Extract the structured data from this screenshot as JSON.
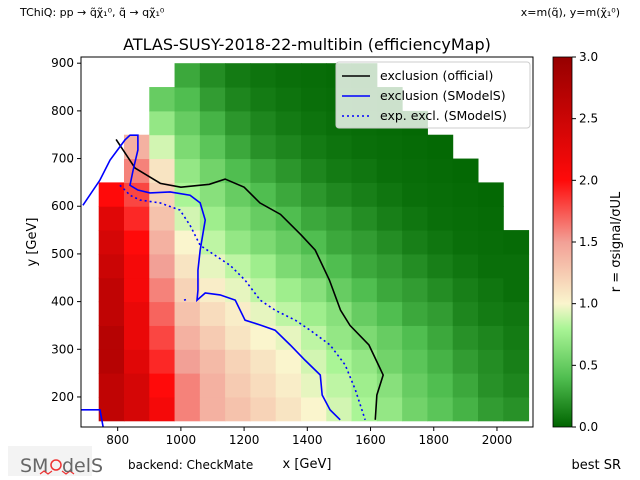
{
  "header": {
    "process_label": "TChiQ: pp → q̃χ̃₁⁰, q̃ → qχ̃₁⁰",
    "axes_def": "x=m(q̃), y=m(χ̃₁⁰)"
  },
  "footer": {
    "logo_text": "SModelS",
    "backend": "backend: CheckMate",
    "best_sr": "best SR"
  },
  "chart_data": {
    "type": "heatmap",
    "title": "ATLAS-SUSY-2018-22-multibin (efficiencyMap)",
    "xlabel": "x [GeV]",
    "ylabel": "y [GeV]",
    "xlim": [
      684,
      2114
    ],
    "ylim": [
      137,
      913
    ],
    "xticks": [
      800,
      1000,
      1200,
      1400,
      1600,
      1800,
      2000
    ],
    "yticks": [
      200,
      300,
      400,
      500,
      600,
      700,
      800,
      900
    ],
    "colorbar": {
      "label": "r = σsignal/σUL",
      "range": [
        0,
        3
      ],
      "ticks": [
        "0.0",
        "0.5",
        "1.0",
        "1.5",
        "2.0",
        "2.5",
        "3.0"
      ]
    },
    "grid_x": [
      780,
      860,
      940,
      1020,
      1100,
      1180,
      1260,
      1340,
      1420,
      1500,
      1580,
      1660,
      1740,
      1820,
      1900,
      1980,
      2060
    ],
    "grid_y": [
      175,
      225,
      275,
      325,
      375,
      425,
      475,
      525,
      575,
      625,
      675,
      725,
      775,
      825,
      875
    ],
    "cell_size": [
      80,
      50
    ],
    "r_values": [
      [
        2.6,
        2.4,
        2.1,
        1.6,
        1.4,
        1.3,
        1.2,
        1.1,
        1.0,
        0.9,
        0.8,
        0.7,
        0.55,
        0.45,
        0.35,
        0.25,
        0.2
      ],
      [
        2.6,
        2.4,
        2.0,
        1.6,
        1.4,
        1.25,
        1.15,
        1.05,
        0.95,
        0.85,
        0.75,
        0.65,
        0.5,
        0.4,
        0.3,
        0.2,
        0.15
      ],
      [
        2.7,
        2.3,
        1.9,
        1.5,
        1.35,
        1.2,
        1.1,
        1.0,
        0.9,
        0.8,
        0.7,
        0.55,
        0.45,
        0.35,
        0.25,
        0.18,
        0.12
      ],
      [
        2.7,
        2.2,
        1.8,
        1.4,
        1.25,
        1.1,
        1.0,
        0.95,
        0.85,
        0.7,
        0.6,
        0.5,
        0.4,
        0.3,
        0.2,
        0.15,
        0.1
      ],
      [
        2.6,
        2.2,
        1.7,
        1.3,
        1.15,
        1.05,
        0.95,
        0.85,
        0.75,
        0.65,
        0.5,
        0.4,
        0.3,
        0.25,
        0.15,
        0.1,
        0.08
      ],
      [
        2.6,
        2.1,
        1.6,
        1.2,
        1.05,
        0.95,
        0.85,
        0.75,
        0.65,
        0.5,
        0.4,
        0.3,
        0.25,
        0.18,
        0.12,
        0.08,
        0.05
      ],
      [
        2.5,
        2.1,
        1.5,
        1.1,
        0.95,
        0.85,
        0.75,
        0.6,
        0.5,
        0.4,
        0.3,
        0.25,
        0.18,
        0.12,
        0.08,
        0.05,
        0.05
      ],
      [
        2.4,
        2.0,
        1.4,
        1.0,
        0.85,
        0.7,
        0.6,
        0.5,
        0.4,
        0.3,
        0.25,
        0.18,
        0.12,
        0.08,
        0.05,
        0.04,
        0.03
      ],
      [
        2.3,
        1.9,
        1.3,
        0.9,
        0.75,
        0.6,
        0.5,
        0.4,
        0.3,
        0.25,
        0.18,
        0.12,
        0.08,
        0.05,
        0.04,
        0.03,
        null
      ],
      [
        2.0,
        1.8,
        1.2,
        0.8,
        0.65,
        0.5,
        0.4,
        0.3,
        0.22,
        0.16,
        0.12,
        0.08,
        0.05,
        0.04,
        0.03,
        0.02,
        null
      ],
      [
        null,
        1.6,
        1.1,
        0.7,
        0.55,
        0.4,
        0.3,
        0.22,
        0.15,
        0.1,
        0.08,
        0.05,
        0.04,
        0.03,
        0.02,
        null,
        null
      ],
      [
        null,
        1.4,
        0.9,
        0.6,
        0.45,
        0.3,
        0.2,
        0.15,
        0.1,
        0.07,
        0.05,
        0.04,
        0.03,
        0.02,
        null,
        null,
        null
      ],
      [
        null,
        null,
        0.7,
        0.5,
        0.35,
        0.22,
        0.15,
        0.1,
        0.07,
        0.05,
        0.04,
        0.03,
        0.02,
        null,
        null,
        null,
        null
      ],
      [
        null,
        null,
        0.5,
        0.4,
        0.25,
        0.15,
        0.1,
        0.07,
        0.05,
        0.04,
        0.03,
        0.02,
        null,
        null,
        null,
        null,
        null
      ],
      [
        null,
        null,
        null,
        0.3,
        0.18,
        0.1,
        0.07,
        0.05,
        0.04,
        0.03,
        0.02,
        null,
        null,
        null,
        null,
        null,
        null
      ]
    ],
    "contours": [
      {
        "name": "exclusion (official)",
        "color": "#000000",
        "style": "solid",
        "segments": [
          [
            [
              795,
              740
            ],
            [
              855,
              680
            ],
            [
              935,
              648
            ],
            [
              1000,
              640
            ],
            [
              1090,
              646
            ],
            [
              1140,
              657
            ],
            [
              1200,
              640
            ],
            [
              1250,
              607
            ],
            [
              1315,
              583
            ],
            [
              1380,
              540
            ],
            [
              1425,
              508
            ],
            [
              1470,
              445
            ],
            [
              1505,
              382
            ],
            [
              1535,
              350
            ],
            [
              1595,
              309
            ],
            [
              1640,
              246
            ],
            [
              1620,
              204
            ],
            [
              1615,
              152
            ]
          ]
        ]
      },
      {
        "name": "exclusion (SModelS)",
        "color": "#0000ff",
        "style": "solid",
        "segments": [
          [
            [
              690,
              602
            ],
            [
              744,
              655
            ],
            [
              776,
              697
            ],
            [
              823,
              739
            ],
            [
              839,
              749
            ],
            [
              864,
              749
            ],
            [
              864,
              718
            ],
            [
              849,
              676
            ],
            [
              839,
              644
            ],
            [
              864,
              634
            ],
            [
              902,
              628
            ],
            [
              966,
              630
            ],
            [
              1029,
              623
            ],
            [
              1061,
              607
            ],
            [
              1077,
              571
            ],
            [
              1061,
              508
            ],
            [
              1054,
              466
            ],
            [
              1054,
              424
            ],
            [
              1051,
              403
            ],
            [
              1077,
              418
            ],
            [
              1124,
              414
            ],
            [
              1172,
              403
            ],
            [
              1203,
              361
            ],
            [
              1251,
              351
            ],
            [
              1298,
              340
            ],
            [
              1346,
              309
            ],
            [
              1393,
              277
            ],
            [
              1441,
              246
            ],
            [
              1447,
              204
            ],
            [
              1472,
              173
            ],
            [
              1504,
              152
            ]
          ],
          [
            [
              684,
              173
            ],
            [
              744,
              173
            ],
            [
              754,
              137
            ]
          ]
        ]
      },
      {
        "name": "exp. excl. (SModelS)",
        "color": "#0000ff",
        "style": "dotted",
        "segments": [
          [
            [
              807,
              644
            ],
            [
              823,
              634
            ],
            [
              839,
              623
            ],
            [
              871,
              613
            ],
            [
              934,
              607
            ],
            [
              997,
              592
            ],
            [
              1029,
              560
            ],
            [
              1061,
              518
            ],
            [
              1108,
              497
            ],
            [
              1156,
              476
            ],
            [
              1203,
              445
            ],
            [
              1251,
              403
            ],
            [
              1298,
              382
            ],
            [
              1362,
              361
            ],
            [
              1409,
              340
            ],
            [
              1472,
              309
            ],
            [
              1520,
              267
            ],
            [
              1552,
              215
            ],
            [
              1583,
              152
            ]
          ],
          [
            [
              1010,
              403
            ],
            [
              1020,
              405
            ]
          ]
        ]
      }
    ],
    "legend": {
      "placement": "top-right",
      "entries": [
        "exclusion (official)",
        "exclusion (SModelS)",
        "exp. excl. (SModelS)"
      ]
    }
  }
}
